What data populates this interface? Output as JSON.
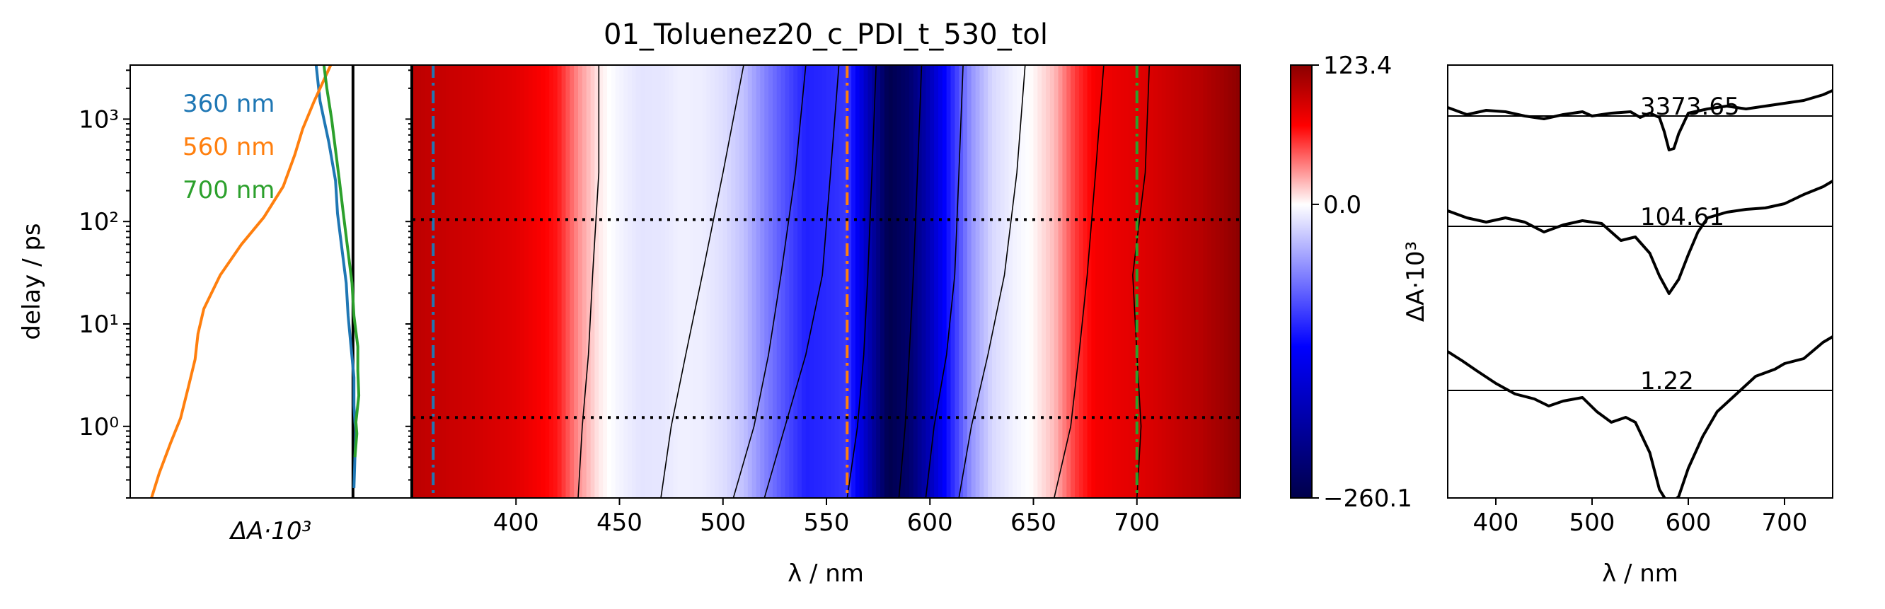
{
  "title": "01_Toluenez20_c_PDI_t_530_tol",
  "colors": {
    "series_360": "#1f77b4",
    "series_560": "#ff7f0e",
    "series_700": "#2ca02c",
    "map_positive": "#8b0000",
    "map_zero": "#ffffff",
    "map_negative": "#00004a"
  },
  "chart_data": [
    {
      "type": "line",
      "panel": "kinetics",
      "ylabel": "delay / ps",
      "xlabel": "ΔA·10³",
      "yscale": "log",
      "ylim": [
        0.2,
        3370
      ],
      "yticks": [
        {
          "value": 1,
          "label": "10⁰"
        },
        {
          "value": 10,
          "label": "10¹"
        },
        {
          "value": 100,
          "label": "10²"
        },
        {
          "value": 1000,
          "label": "10³"
        }
      ],
      "xlim": [
        -230,
        60
      ],
      "zero_line": 0,
      "series": [
        {
          "name": "360 nm",
          "color_key": "series_360",
          "points": [
            [
              1,
              0.25
            ],
            [
              2,
              0.5
            ],
            [
              3,
              0.9
            ],
            [
              2,
              1.1
            ],
            [
              1,
              1.6
            ],
            [
              1,
              3
            ],
            [
              -2,
              6
            ],
            [
              -5,
              12
            ],
            [
              -7,
              25
            ],
            [
              -12,
              60
            ],
            [
              -16,
              120
            ],
            [
              -18,
              250
            ],
            [
              -25,
              600
            ],
            [
              -34,
              1500
            ],
            [
              -38,
              3370
            ]
          ]
        },
        {
          "name": "560 nm",
          "color_key": "series_560",
          "points": [
            [
              -208,
              0.2
            ],
            [
              -200,
              0.35
            ],
            [
              -188,
              0.7
            ],
            [
              -178,
              1.2
            ],
            [
              -170,
              2.4
            ],
            [
              -163,
              4.5
            ],
            [
              -160,
              8
            ],
            [
              -154,
              14
            ],
            [
              -137,
              30
            ],
            [
              -115,
              60
            ],
            [
              -92,
              110
            ],
            [
              -72,
              220
            ],
            [
              -60,
              450
            ],
            [
              -52,
              800
            ],
            [
              -40,
              1500
            ],
            [
              -23,
              3370
            ]
          ]
        },
        {
          "name": "700 nm",
          "color_key": "series_700",
          "points": [
            [
              2,
              0.5
            ],
            [
              4,
              0.85
            ],
            [
              3,
              1.1
            ],
            [
              6,
              2
            ],
            [
              5,
              3.5
            ],
            [
              5,
              6
            ],
            [
              1,
              12
            ],
            [
              -1,
              25
            ],
            [
              -6,
              60
            ],
            [
              -10,
              120
            ],
            [
              -14,
              250
            ],
            [
              -18,
              500
            ],
            [
              -22,
              1000
            ],
            [
              -27,
              2000
            ],
            [
              -30,
              3370
            ]
          ]
        }
      ]
    },
    {
      "type": "heatmap",
      "panel": "map",
      "xlabel": "λ / nm",
      "xlim": [
        350,
        750
      ],
      "xticks": [
        400,
        450,
        500,
        550,
        600,
        650,
        700
      ],
      "yscale": "log",
      "ylim": [
        0.2,
        3370
      ],
      "colorbar": {
        "ylabel": "ΔA·10³",
        "min": -260.1,
        "max": 123.4,
        "ticks": [
          -260.1,
          0.0,
          123.4
        ]
      },
      "spectral_profile": [
        [
          350,
          100
        ],
        [
          360,
          96
        ],
        [
          380,
          90
        ],
        [
          400,
          82
        ],
        [
          420,
          62
        ],
        [
          430,
          30
        ],
        [
          440,
          6
        ],
        [
          450,
          -6
        ],
        [
          460,
          -15
        ],
        [
          470,
          -14
        ],
        [
          480,
          -8
        ],
        [
          490,
          -10
        ],
        [
          500,
          -18
        ],
        [
          510,
          -35
        ],
        [
          520,
          -68
        ],
        [
          530,
          -98
        ],
        [
          540,
          -125
        ],
        [
          550,
          -120
        ],
        [
          560,
          -112
        ],
        [
          570,
          -188
        ],
        [
          580,
          -258
        ],
        [
          590,
          -238
        ],
        [
          600,
          -188
        ],
        [
          610,
          -125
        ],
        [
          620,
          -60
        ],
        [
          630,
          -22
        ],
        [
          640,
          -8
        ],
        [
          650,
          2
        ],
        [
          660,
          18
        ],
        [
          670,
          52
        ],
        [
          680,
          72
        ],
        [
          690,
          78
        ],
        [
          700,
          82
        ],
        [
          710,
          88
        ],
        [
          720,
          96
        ],
        [
          730,
          102
        ],
        [
          740,
          112
        ],
        [
          750,
          123
        ]
      ],
      "marked_wavelengths": [
        {
          "value": 360,
          "color_key": "series_360"
        },
        {
          "value": 560,
          "color_key": "series_560"
        },
        {
          "value": 700,
          "color_key": "series_700"
        }
      ],
      "marked_delays": [
        1.22,
        104.61
      ]
    },
    {
      "type": "line",
      "panel": "spectra",
      "xlabel": "λ / nm",
      "ylabel": "ΔA·10³",
      "xlim": [
        350,
        750
      ],
      "xticks": [
        400,
        500,
        600,
        700
      ],
      "series": [
        {
          "label": "3373.65",
          "points": [
            [
              350,
              12
            ],
            [
              370,
              2
            ],
            [
              390,
              8
            ],
            [
              410,
              6
            ],
            [
              430,
              0
            ],
            [
              450,
              -4
            ],
            [
              470,
              2
            ],
            [
              490,
              6
            ],
            [
              500,
              0
            ],
            [
              520,
              4
            ],
            [
              540,
              6
            ],
            [
              550,
              -2
            ],
            [
              560,
              4
            ],
            [
              570,
              -2
            ],
            [
              575,
              -22
            ],
            [
              580,
              -48
            ],
            [
              585,
              -46
            ],
            [
              590,
              -25
            ],
            [
              600,
              4
            ],
            [
              620,
              10
            ],
            [
              640,
              14
            ],
            [
              660,
              10
            ],
            [
              680,
              14
            ],
            [
              700,
              18
            ],
            [
              720,
              22
            ],
            [
              740,
              30
            ],
            [
              750,
              36
            ]
          ]
        },
        {
          "label": "104.61",
          "points": [
            [
              350,
              22
            ],
            [
              370,
              12
            ],
            [
              390,
              6
            ],
            [
              410,
              12
            ],
            [
              430,
              6
            ],
            [
              450,
              -8
            ],
            [
              470,
              2
            ],
            [
              490,
              8
            ],
            [
              510,
              4
            ],
            [
              530,
              -20
            ],
            [
              545,
              -15
            ],
            [
              560,
              -38
            ],
            [
              570,
              -70
            ],
            [
              580,
              -95
            ],
            [
              590,
              -75
            ],
            [
              600,
              -40
            ],
            [
              610,
              -8
            ],
            [
              620,
              12
            ],
            [
              640,
              20
            ],
            [
              660,
              24
            ],
            [
              680,
              26
            ],
            [
              700,
              32
            ],
            [
              720,
              45
            ],
            [
              740,
              56
            ],
            [
              750,
              64
            ]
          ]
        },
        {
          "label": "1.22",
          "points": [
            [
              350,
              55
            ],
            [
              365,
              42
            ],
            [
              380,
              28
            ],
            [
              400,
              10
            ],
            [
              420,
              -5
            ],
            [
              440,
              -12
            ],
            [
              455,
              -22
            ],
            [
              470,
              -15
            ],
            [
              490,
              -10
            ],
            [
              505,
              -30
            ],
            [
              520,
              -45
            ],
            [
              535,
              -38
            ],
            [
              545,
              -45
            ],
            [
              560,
              -88
            ],
            [
              570,
              -140
            ],
            [
              580,
              -162
            ],
            [
              590,
              -150
            ],
            [
              600,
              -110
            ],
            [
              615,
              -65
            ],
            [
              630,
              -30
            ],
            [
              650,
              -5
            ],
            [
              670,
              20
            ],
            [
              690,
              30
            ],
            [
              700,
              38
            ],
            [
              720,
              45
            ],
            [
              740,
              68
            ],
            [
              750,
              76
            ]
          ]
        }
      ]
    }
  ]
}
